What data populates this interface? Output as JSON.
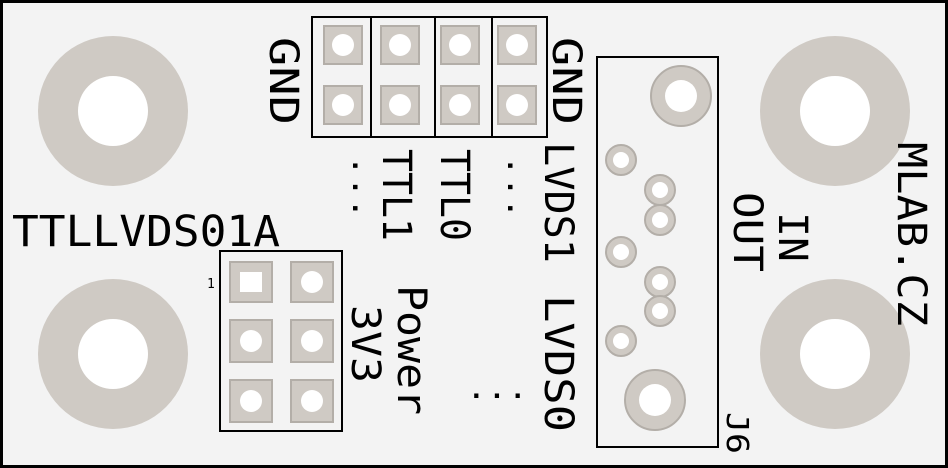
{
  "colors": {
    "board": "#f3f3f3",
    "outline": "#000000",
    "copper_ring": "#cfcac4",
    "pad_outline": "#b3aea8",
    "silkscreen": "#000000"
  },
  "labels": {
    "board_name": "TTLLVDS01A",
    "vendor": "MLAB.CZ",
    "gnd_left": "GND",
    "gnd_right": "GND",
    "ttl1": "TTL1",
    "ttl0": "TTL0",
    "lvds1": "LVDS1",
    "lvds0": "LVDS0",
    "in": "IN",
    "out": "OUT",
    "power": "Power",
    "voltage": "3V3",
    "pin1": "1",
    "connector_ref": "J6",
    "dots": "..."
  }
}
